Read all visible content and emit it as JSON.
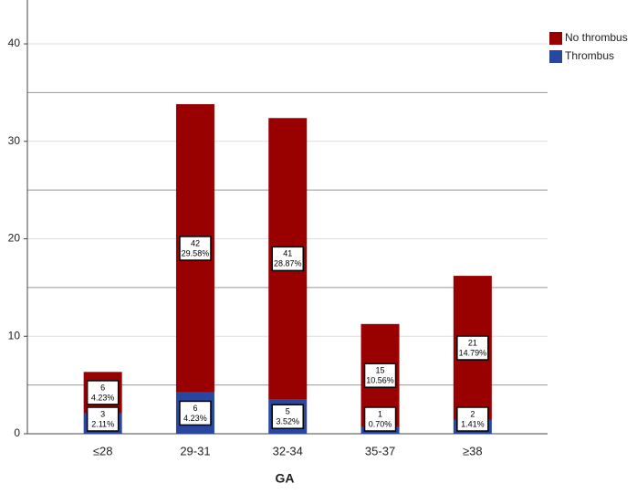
{
  "chart_data": {
    "type": "stacked_bar",
    "x_label": "GA",
    "categories": [
      "≤28",
      "29-31",
      "32-34",
      "35-37",
      "≥38"
    ],
    "series": [
      {
        "name": "Thrombus",
        "color": "#2a47a0",
        "values": [
          2.11,
          4.23,
          3.52,
          0.7,
          1.41
        ],
        "value_labels": [
          "2.11%",
          "4.23%",
          "3.52%",
          "0.70%",
          "1.41%"
        ],
        "counts": [
          3,
          6,
          5,
          1,
          2
        ]
      },
      {
        "name": "No thrombus",
        "color": "#990000",
        "values": [
          4.23,
          29.58,
          28.87,
          10.56,
          14.79
        ],
        "value_labels": [
          "4.23%",
          "29.58%",
          "28.87%",
          "10.56%",
          "14.79%"
        ],
        "counts": [
          6,
          42,
          41,
          15,
          21
        ]
      }
    ],
    "ylim": [
      0,
      44.5
    ],
    "yticks": [
      0,
      10,
      20,
      30,
      40
    ],
    "minor_yticks": [
      5,
      15,
      25,
      35
    ],
    "grid": true,
    "legend": "top-right"
  }
}
